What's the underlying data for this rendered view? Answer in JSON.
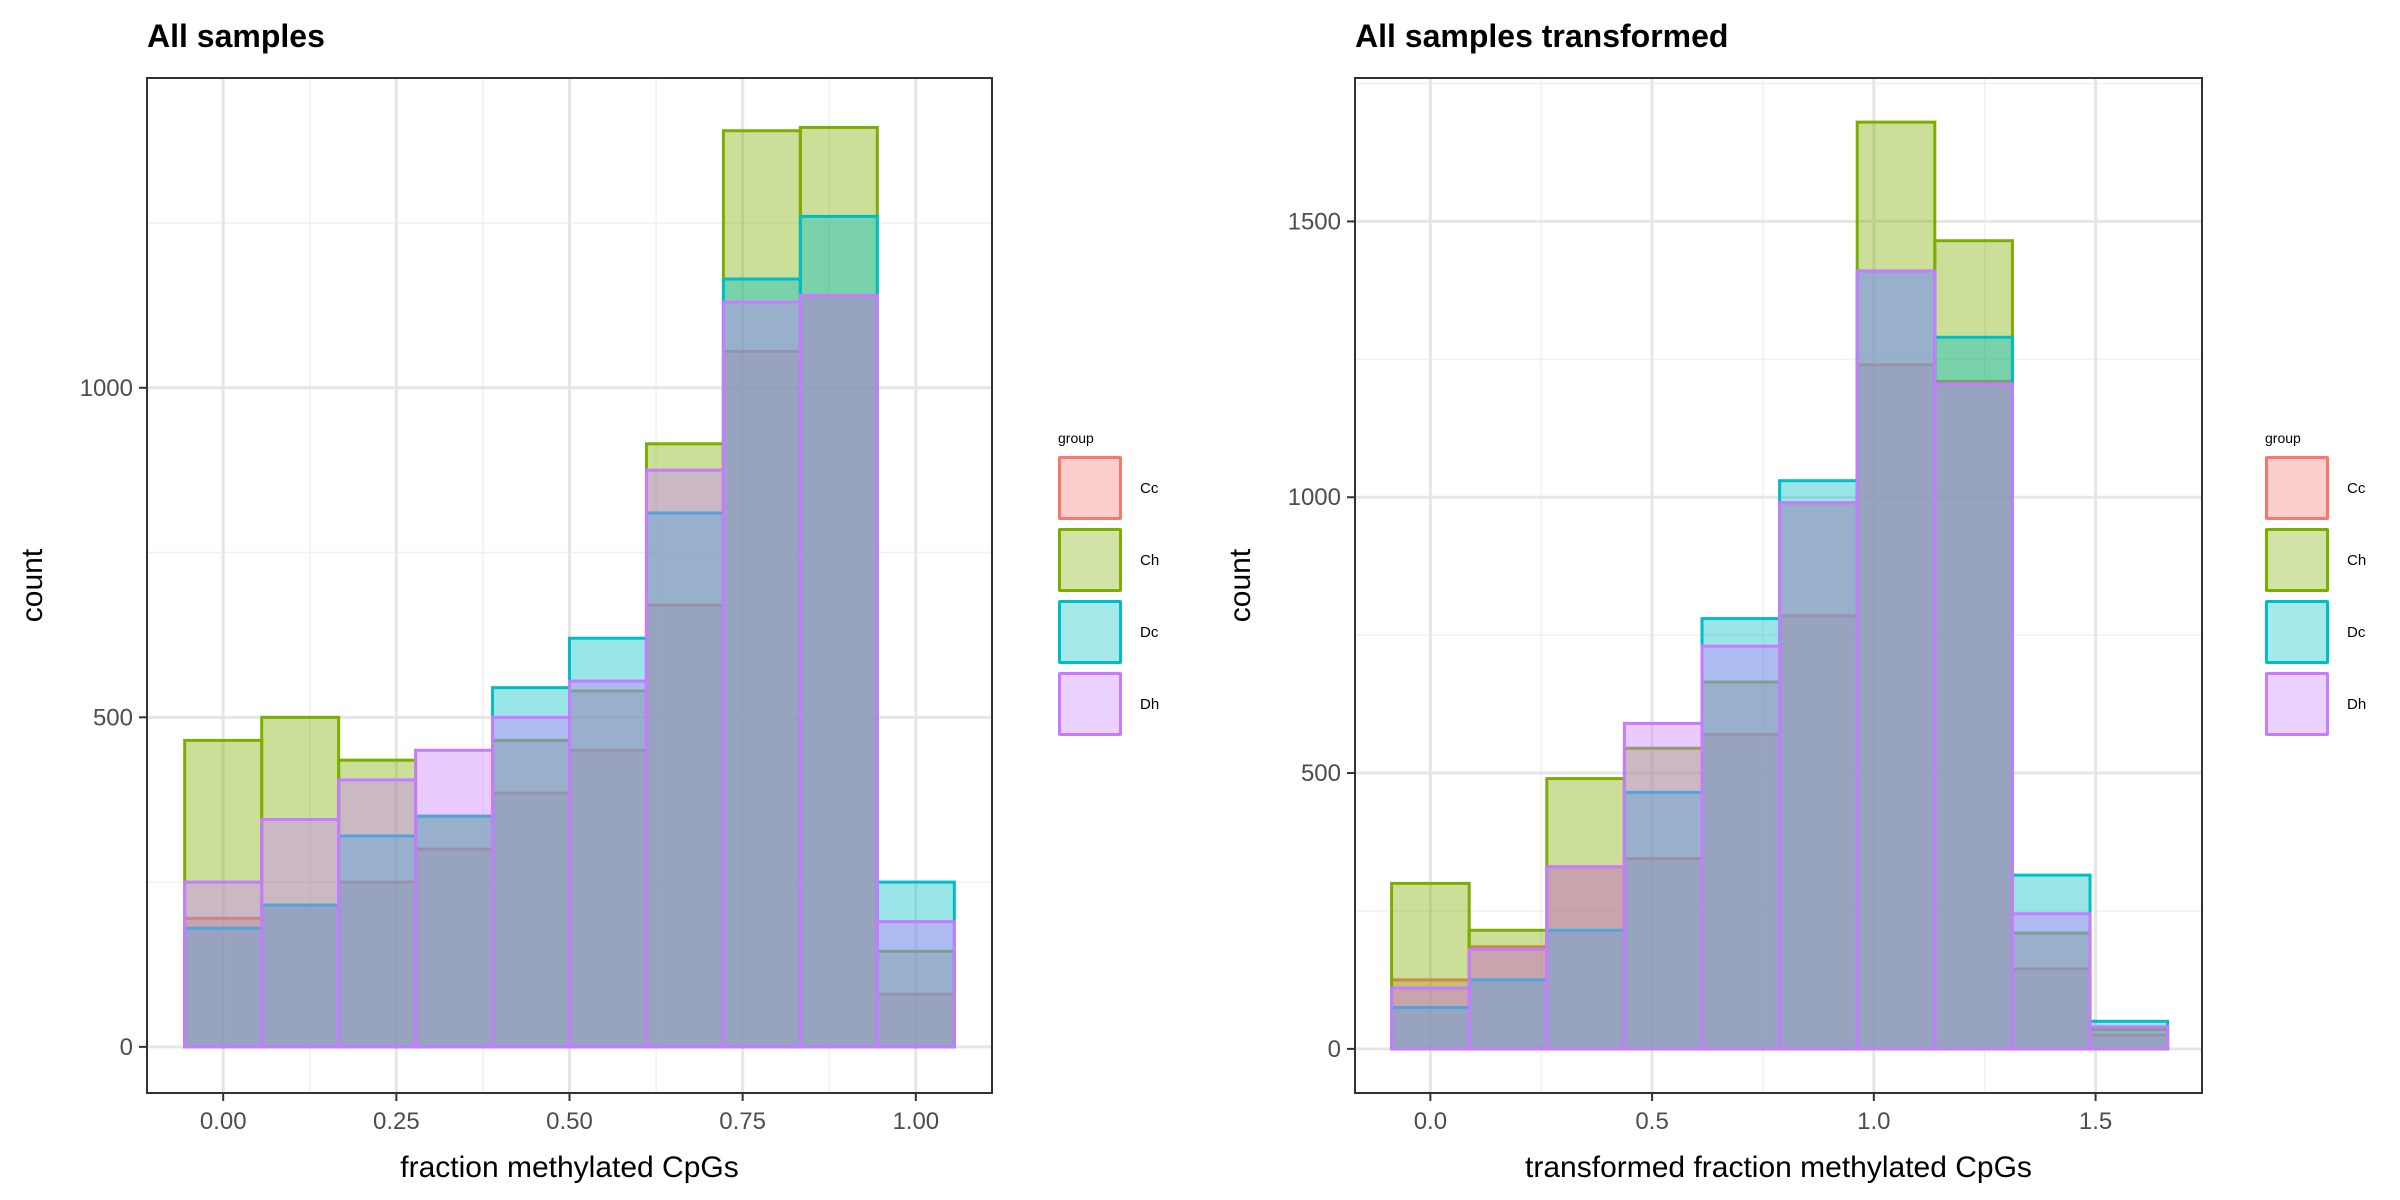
{
  "legend_title": "group",
  "groups": [
    {
      "name": "Cc",
      "fill": "#F8766D",
      "stroke": "#F8766D"
    },
    {
      "name": "Ch",
      "fill": "#7CAE00",
      "stroke": "#7CAE00"
    },
    {
      "name": "Dc",
      "fill": "#00BFC4",
      "stroke": "#00BFC4"
    },
    {
      "name": "Dh",
      "fill": "#C77CFF",
      "stroke": "#C77CFF"
    }
  ],
  "chart_data": [
    {
      "type": "histogram",
      "title": "All samples",
      "xlabel": "fraction methylated CpGs",
      "ylabel": "count",
      "xlim": [
        -0.11,
        1.11
      ],
      "ylim": [
        -70,
        1470
      ],
      "x_ticks": [
        0.0,
        0.25,
        0.5,
        0.75,
        1.0
      ],
      "x_tick_labels": [
        "0.00",
        "0.25",
        "0.50",
        "0.75",
        "1.00"
      ],
      "y_ticks": [
        0,
        500,
        1000
      ],
      "y_tick_labels": [
        "0",
        "500",
        "1000"
      ],
      "grid": true,
      "legend_position": "right",
      "bin_edges": [
        -0.0556,
        0.0556,
        0.1667,
        0.2778,
        0.3889,
        0.5,
        0.6111,
        0.7222,
        0.8333,
        0.9444,
        1.0556
      ],
      "series": [
        {
          "name": "Cc",
          "values": [
            195,
            215,
            250,
            300,
            385,
            450,
            670,
            1055,
            1140,
            80
          ]
        },
        {
          "name": "Ch",
          "values": [
            465,
            500,
            435,
            350,
            465,
            540,
            915,
            1390,
            1395,
            145
          ]
        },
        {
          "name": "Dc",
          "values": [
            180,
            215,
            320,
            350,
            545,
            620,
            810,
            1165,
            1260,
            250
          ]
        },
        {
          "name": "Dh",
          "values": [
            250,
            345,
            405,
            450,
            500,
            555,
            875,
            1130,
            1140,
            190
          ]
        }
      ]
    },
    {
      "type": "histogram",
      "title": "All samples transformed",
      "xlabel": "transformed fraction methylated CpGs",
      "ylabel": "count",
      "xlim": [
        -0.17,
        1.74
      ],
      "ylim": [
        -80,
        1760
      ],
      "x_ticks": [
        0.0,
        0.5,
        1.0,
        1.5
      ],
      "x_tick_labels": [
        "0.0",
        "0.5",
        "1.0",
        "1.5"
      ],
      "y_ticks": [
        0,
        500,
        1000,
        1500
      ],
      "y_tick_labels": [
        "0",
        "500",
        "1000",
        "1500"
      ],
      "grid": true,
      "legend_position": "right",
      "bin_edges": [
        -0.0875,
        0.0875,
        0.2625,
        0.4375,
        0.6125,
        0.7875,
        0.9625,
        1.1375,
        1.3125,
        1.4875,
        1.6625
      ],
      "series": [
        {
          "name": "Cc",
          "values": [
            125,
            185,
            330,
            345,
            570,
            785,
            1240,
            1210,
            145,
            25
          ]
        },
        {
          "name": "Ch",
          "values": [
            300,
            215,
            490,
            545,
            665,
            990,
            1680,
            1465,
            210,
            35
          ]
        },
        {
          "name": "Dc",
          "values": [
            75,
            125,
            215,
            465,
            780,
            1030,
            1410,
            1290,
            315,
            50
          ]
        },
        {
          "name": "Dh",
          "values": [
            110,
            180,
            330,
            590,
            730,
            990,
            1410,
            1205,
            245,
            40
          ]
        }
      ]
    }
  ]
}
